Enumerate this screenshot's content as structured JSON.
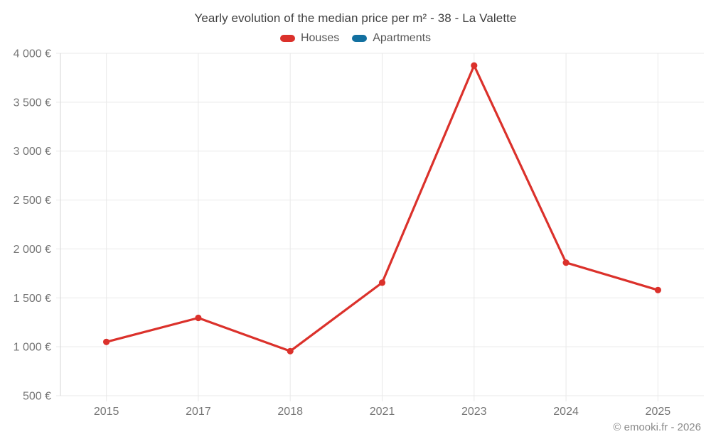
{
  "title": "Yearly evolution of the median price per m² - 38 - La Valette",
  "footer": "© emooki.fr - 2026",
  "colors": {
    "houses": "#db312b",
    "apartments": "#1270a0",
    "grid": "#e9e9e9",
    "axis_line": "#d6d6d6",
    "axis_text": "#757575"
  },
  "chart_data": {
    "type": "line",
    "categories": [
      "2015",
      "2017",
      "2018",
      "2021",
      "2023",
      "2024",
      "2025"
    ],
    "series": [
      {
        "name": "Houses",
        "color_key": "houses",
        "values": [
          1050,
          1295,
          955,
          1655,
          3875,
          1860,
          1580
        ]
      },
      {
        "name": "Apartments",
        "color_key": "apartments",
        "values": []
      }
    ],
    "title": "Yearly evolution of the median price per m² - 38 - La Valette",
    "xlabel": "",
    "ylabel": "",
    "ylim": [
      500,
      4000
    ],
    "ytick_step": 500,
    "ytick_labels": [
      "500 €",
      "1 000 €",
      "1 500 €",
      "2 000 €",
      "2 500 €",
      "3 000 €",
      "3 500 €",
      "4 000 €"
    ],
    "grid": true,
    "legend_position": "top",
    "marker": "circle"
  }
}
